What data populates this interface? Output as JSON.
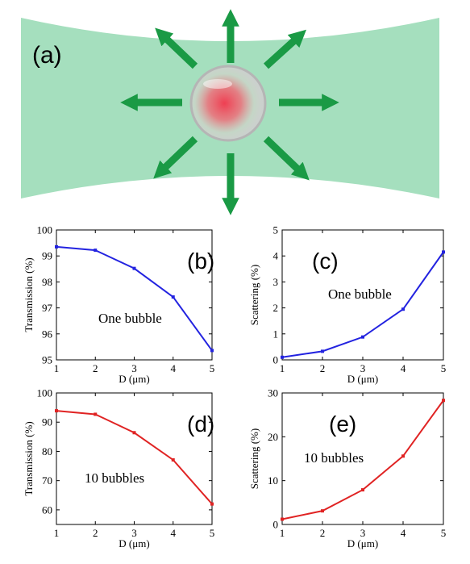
{
  "panel_a": {
    "letter": "(a)",
    "colors": {
      "beam": "#a5dfbe",
      "arrow": "#1a9a45",
      "bubble_core": "#ef4b5a",
      "bubble_rim": "#bdbdbd"
    }
  },
  "chart_data": [
    {
      "id": "b",
      "type": "line",
      "letter": "(b)",
      "annotation": "One bubble",
      "xlabel": "D (μm)",
      "ylabel": "Transmission (%)",
      "x": [
        1,
        2,
        3,
        4,
        5
      ],
      "series": [
        {
          "values": [
            99.35,
            99.22,
            98.52,
            97.42,
            95.36
          ],
          "color": "#2323e0"
        }
      ],
      "xlim": [
        1,
        5
      ],
      "ylim": [
        95,
        100
      ],
      "xticks": [
        "1",
        "2",
        "3",
        "4",
        "5"
      ],
      "yticks": [
        "95",
        "96",
        "97",
        "98",
        "99",
        "100"
      ]
    },
    {
      "id": "c",
      "type": "line",
      "letter": "(c)",
      "annotation": "One bubble",
      "xlabel": "D (μm)",
      "ylabel": "Scattering (%)",
      "x": [
        1,
        2,
        3,
        4,
        5
      ],
      "series": [
        {
          "values": [
            0.1,
            0.33,
            0.88,
            1.95,
            4.15
          ],
          "color": "#2323e0"
        }
      ],
      "xlim": [
        1,
        5
      ],
      "ylim": [
        0,
        5
      ],
      "xticks": [
        "1",
        "2",
        "3",
        "4",
        "5"
      ],
      "yticks": [
        "0",
        "1",
        "2",
        "3",
        "4",
        "5"
      ]
    },
    {
      "id": "d",
      "type": "line",
      "letter": "(d)",
      "annotation": "10 bubbles",
      "xlabel": "D (μm)",
      "ylabel": "Transmission (%)",
      "x": [
        1,
        2,
        3,
        4,
        5
      ],
      "series": [
        {
          "values": [
            93.9,
            92.7,
            86.4,
            77.1,
            62.0
          ],
          "color": "#e02323"
        }
      ],
      "xlim": [
        1,
        5
      ],
      "ylim": [
        55,
        100
      ],
      "xticks": [
        "1",
        "2",
        "3",
        "4",
        "5"
      ],
      "yticks": [
        "60",
        "70",
        "80",
        "90",
        "100"
      ]
    },
    {
      "id": "e",
      "type": "line",
      "letter": "(e)",
      "annotation": "10 bubbles",
      "xlabel": "D (μm)",
      "ylabel": "Scattering (%)",
      "x": [
        1,
        2,
        3,
        4,
        5
      ],
      "series": [
        {
          "values": [
            1.2,
            3.1,
            7.9,
            15.6,
            28.3
          ],
          "color": "#e02323"
        }
      ],
      "xlim": [
        1,
        5
      ],
      "ylim": [
        0,
        30
      ],
      "xticks": [
        "1",
        "2",
        "3",
        "4",
        "5"
      ],
      "yticks": [
        "0",
        "10",
        "20",
        "30"
      ]
    }
  ]
}
